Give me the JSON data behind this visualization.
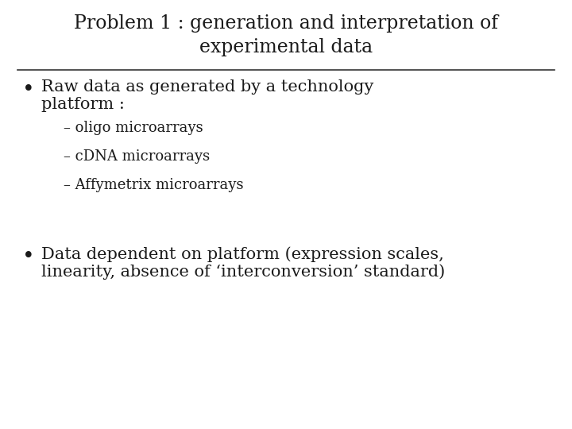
{
  "title_line1": "Problem 1 : generation and interpretation of",
  "title_line2": "experimental data",
  "background_color": "#ffffff",
  "text_color": "#1a1a1a",
  "title_fontsize": 17,
  "body_fontsize": 15,
  "sub_fontsize": 13,
  "bullet1_line1": "Raw data as generated by a technology",
  "bullet1_line2": "platform :",
  "sub_items": [
    "– oligo microarrays",
    "– cDNA microarrays",
    "– Affymetrix microarrays"
  ],
  "bullet2_line1": "Data dependent on platform (expression scales,",
  "bullet2_line2": "linearity, absence of ‘interconversion’ standard)",
  "font_family": "serif"
}
